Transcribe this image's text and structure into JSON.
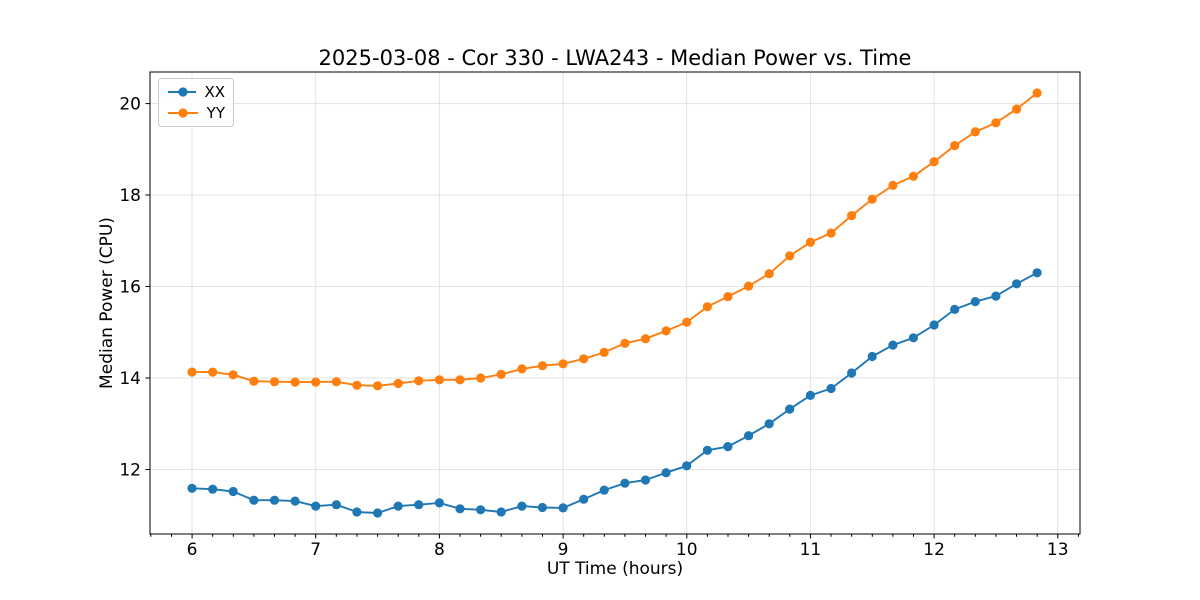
{
  "figure": {
    "title": "2025-03-08 - Cor 330 - LWA243 - Median Power vs. Time",
    "xlabel": "UT Time (hours)",
    "ylabel": "Median Power (CPU)"
  },
  "chart_data": {
    "type": "line",
    "title": "2025-03-08 - Cor 330 - LWA243 - Median Power vs. Time",
    "xlabel": "UT Time (hours)",
    "ylabel": "Median Power (CPU)",
    "grid": true,
    "legend_position": "upper left",
    "xlim": [
      5.66,
      13.18
    ],
    "ylim": [
      10.59,
      20.69
    ],
    "x_ticks": [
      6,
      7,
      8,
      9,
      10,
      11,
      12,
      13
    ],
    "y_ticks": [
      12,
      14,
      16,
      18,
      20
    ],
    "x_minor_tick_step": 0.16667,
    "x": [
      6.0,
      6.167,
      6.333,
      6.5,
      6.667,
      6.833,
      7.0,
      7.167,
      7.333,
      7.5,
      7.667,
      7.833,
      8.0,
      8.167,
      8.333,
      8.5,
      8.667,
      8.833,
      9.0,
      9.167,
      9.333,
      9.5,
      9.667,
      9.833,
      10.0,
      10.167,
      10.333,
      10.5,
      10.667,
      10.833,
      11.0,
      11.167,
      11.333,
      11.5,
      11.667,
      11.833,
      12.0,
      12.167,
      12.333,
      12.5,
      12.667,
      12.833
    ],
    "series": [
      {
        "name": "XX",
        "color": "#1f77b4",
        "marker": "circle",
        "values": [
          11.59,
          11.57,
          11.52,
          11.33,
          11.33,
          11.31,
          11.2,
          11.23,
          11.07,
          11.05,
          11.2,
          11.23,
          11.27,
          11.14,
          11.12,
          11.07,
          11.2,
          11.17,
          11.16,
          11.35,
          11.55,
          11.7,
          11.77,
          11.93,
          12.08,
          12.42,
          12.5,
          12.74,
          13.0,
          13.32,
          13.62,
          13.77,
          14.11,
          14.47,
          14.72,
          14.88,
          15.16,
          15.5,
          15.67,
          15.79,
          16.06,
          16.3
        ]
      },
      {
        "name": "YY",
        "color": "#ff7f0e",
        "marker": "circle",
        "values": [
          14.13,
          14.13,
          14.07,
          13.93,
          13.92,
          13.91,
          13.91,
          13.92,
          13.84,
          13.83,
          13.88,
          13.94,
          13.96,
          13.96,
          14.0,
          14.08,
          14.2,
          14.27,
          14.31,
          14.42,
          14.56,
          14.76,
          14.86,
          15.03,
          15.22,
          15.56,
          15.78,
          16.01,
          16.28,
          16.67,
          16.97,
          17.17,
          17.55,
          17.91,
          18.21,
          18.41,
          18.73,
          19.08,
          19.38,
          19.58,
          19.88,
          20.23
        ]
      }
    ],
    "colors": {
      "grid": "#e3e3e3",
      "axis": "#000000",
      "background": "#ffffff"
    }
  }
}
